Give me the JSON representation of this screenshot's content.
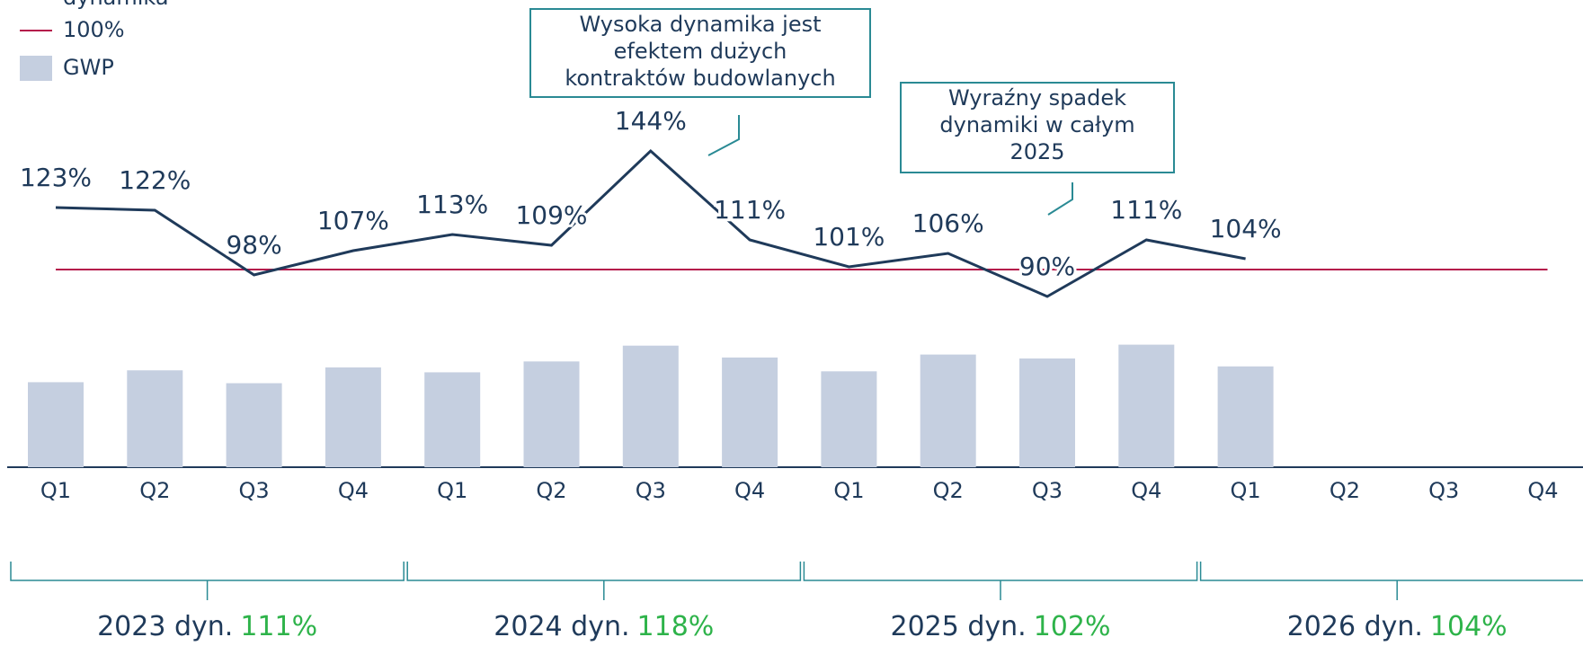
{
  "chart_data": {
    "type": "bar_line",
    "categories": [
      "Q1",
      "Q2",
      "Q3",
      "Q4",
      "Q1",
      "Q2",
      "Q3",
      "Q4",
      "Q1",
      "Q2",
      "Q3",
      "Q4",
      "Q1",
      "Q2",
      "Q3",
      "Q4"
    ],
    "series": [
      {
        "name": "dynamika",
        "type": "line",
        "color": "#1f3a5a",
        "values": [
          123,
          122,
          98,
          107,
          113,
          109,
          144,
          111,
          101,
          106,
          90,
          111,
          104,
          null,
          null,
          null
        ],
        "value_labels": [
          "123%",
          "122%",
          "98%",
          "107%",
          "113%",
          "109%",
          "144%",
          "111%",
          "101%",
          "106%",
          "90%",
          "111%",
          "104%",
          null,
          null,
          null
        ]
      },
      {
        "name": "GWP",
        "type": "bar",
        "color": "#c5cfe0",
        "values": [
          86,
          98,
          85,
          101,
          96,
          107,
          123,
          111,
          97,
          114,
          110,
          124,
          102,
          null,
          null,
          null
        ]
      }
    ],
    "reference_line": {
      "name": "100%",
      "value": 100,
      "color": "#b5174b"
    },
    "ylim": [
      60,
      150
    ],
    "annotations": [
      {
        "lines": [
          "Wysoka dynamika jest",
          "efektem dużych",
          "kontraktów budowlanych"
        ]
      },
      {
        "lines": [
          "Wyraźny spadek",
          "dynamiki w całym",
          "2025"
        ]
      }
    ],
    "year_summaries": {
      "labels": [
        "2023 dyn.",
        "2024 dyn.",
        "2025 dyn.",
        "2026 dyn."
      ],
      "values": [
        111,
        118,
        102,
        104
      ],
      "value_labels": [
        "111%",
        "118%",
        "102%",
        "104%"
      ],
      "color": "#2eb34a"
    }
  }
}
